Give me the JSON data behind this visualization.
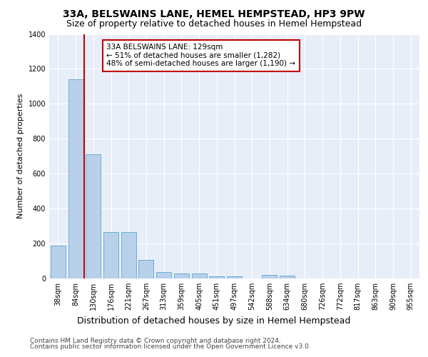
{
  "title": "33A, BELSWAINS LANE, HEMEL HEMPSTEAD, HP3 9PW",
  "subtitle": "Size of property relative to detached houses in Hemel Hempstead",
  "xlabel": "Distribution of detached houses by size in Hemel Hempstead",
  "ylabel": "Number of detached properties",
  "footnote1": "Contains HM Land Registry data © Crown copyright and database right 2024.",
  "footnote2": "Contains public sector information licensed under the Open Government Licence v3.0.",
  "categories": [
    "38sqm",
    "84sqm",
    "130sqm",
    "176sqm",
    "221sqm",
    "267sqm",
    "313sqm",
    "359sqm",
    "405sqm",
    "451sqm",
    "497sqm",
    "542sqm",
    "588sqm",
    "634sqm",
    "680sqm",
    "726sqm",
    "772sqm",
    "817sqm",
    "863sqm",
    "909sqm",
    "955sqm"
  ],
  "values": [
    190,
    1140,
    710,
    265,
    265,
    108,
    35,
    28,
    27,
    14,
    12,
    0,
    20,
    15,
    0,
    0,
    0,
    0,
    0,
    0,
    0
  ],
  "bar_color": "#b8d0ea",
  "bar_edge_color": "#6aaed6",
  "highlight_line_color": "#c00000",
  "annotation_text": "33A BELSWAINS LANE: 129sqm\n← 51% of detached houses are smaller (1,282)\n48% of semi-detached houses are larger (1,190) →",
  "annotation_box_color": "#c00000",
  "ylim": [
    0,
    1400
  ],
  "yticks": [
    0,
    200,
    400,
    600,
    800,
    1000,
    1200,
    1400
  ],
  "plot_bg_color": "#e8eef8",
  "grid_color": "#ffffff",
  "title_fontsize": 10,
  "subtitle_fontsize": 9,
  "ylabel_fontsize": 8,
  "xlabel_fontsize": 9,
  "tick_fontsize": 7,
  "annot_fontsize": 7.5,
  "footnote_fontsize": 6.5
}
